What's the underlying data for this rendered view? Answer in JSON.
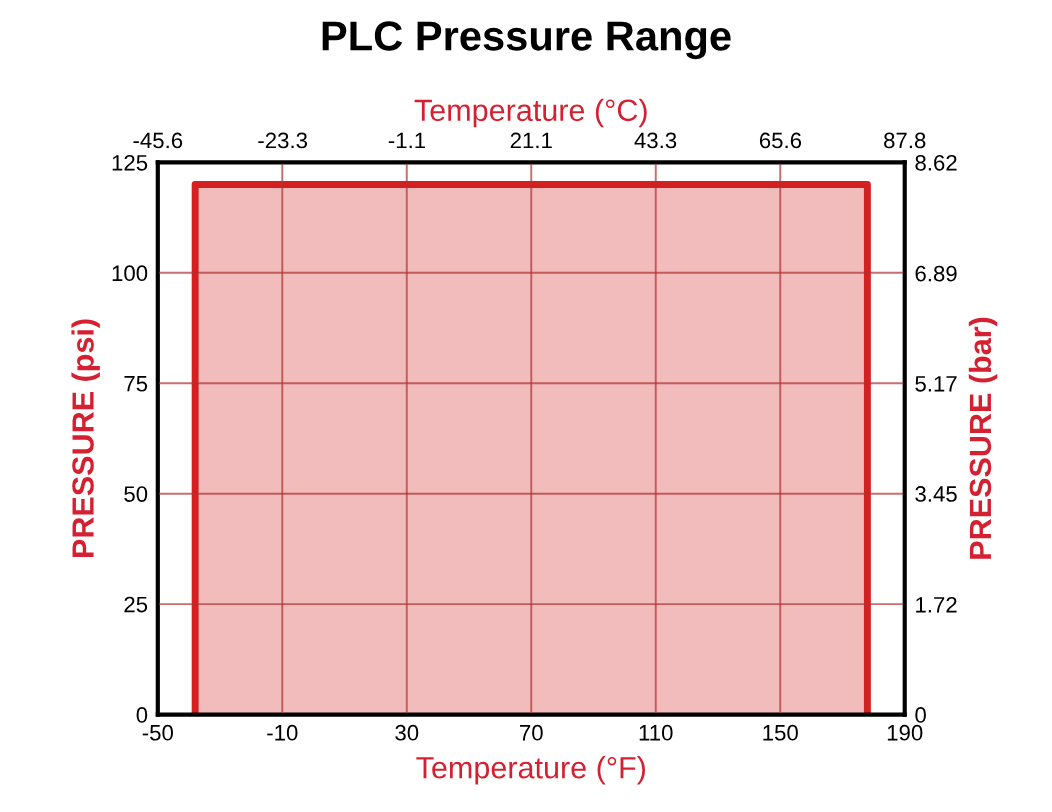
{
  "chart_data": {
    "type": "area",
    "title": "PLC Pressure Range",
    "xlabel": "Temperature (°F)",
    "x2label": "Temperature (°C)",
    "ylabel": "PRESSURE (psi)",
    "y2label": "PRESSURE (bar)",
    "series": [
      {
        "color": "#d42020",
        "x": [
          -38,
          178
        ],
        "values": [
          120,
          120
        ]
      }
    ],
    "xlim": [
      -50,
      190
    ],
    "xticks": [
      -50,
      -10,
      30,
      70,
      110,
      150,
      190
    ],
    "x2lim": [
      -45.6,
      87.8
    ],
    "x2ticks": [
      -45.6,
      -23.3,
      -1.1,
      21.1,
      43.3,
      65.6,
      87.8
    ],
    "ylim": [
      0,
      125
    ],
    "yticks": [
      0,
      25,
      50,
      75,
      100,
      125
    ],
    "y2lim": [
      0,
      8.62
    ],
    "y2ticks": [
      0,
      1.72,
      3.45,
      5.17,
      6.89,
      8.62
    ],
    "grid": true
  }
}
